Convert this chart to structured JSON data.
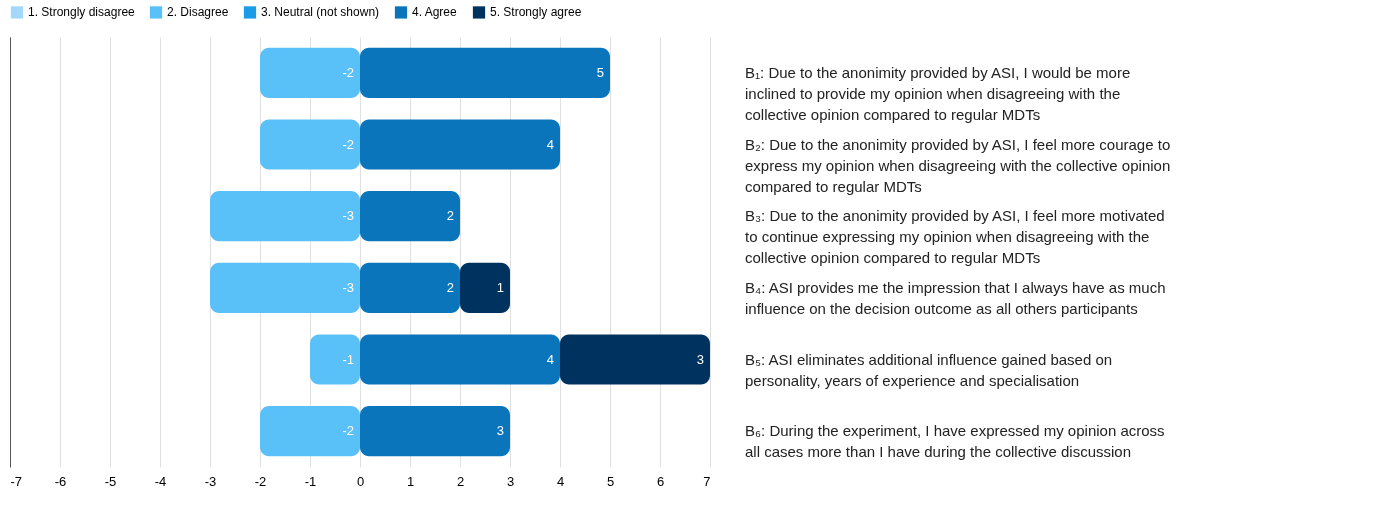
{
  "chart_data": {
    "type": "bar",
    "orientation": "horizontal",
    "stacked": true,
    "categories": [
      "B₁: Due to the anonimity provided by ASI, I would be more inclined to provide my opinion when disagreeing with the collective opinion compared to regular MDTs",
      "B₂: Due to the anonimity provided by ASI, I feel more courage to express my opinion when disagreeing with the collective opinion compared to regular MDTs",
      "B₃: Due to the anonimity provided by ASI, I feel more motivated to continue expressing my opinion when disagreeing with the collective opinion compared to regular MDTs",
      "B₄: ASI provides me the impression that I always have as much influence on the decision outcome as all others participants",
      "B₅: ASI eliminates additional influence gained based on personality, years of experience and specialisation",
      "B₆: During the experiment, I have expressed my opinion across all cases more than I have during the collective discussion"
    ],
    "series": [
      {
        "name": "1. Strongly disagree",
        "color": "#a4d8fb",
        "values": [
          null,
          null,
          null,
          null,
          null,
          null
        ]
      },
      {
        "name": "2. Disagree",
        "color": "#5ac1f8",
        "values": [
          -2,
          -2,
          -3,
          -3,
          -1,
          -2
        ]
      },
      {
        "name": "3. Neutral (not shown)",
        "color": "#1b9ce6",
        "values": [
          null,
          null,
          null,
          null,
          null,
          null
        ]
      },
      {
        "name": "4. Agree",
        "color": "#0a75bb",
        "values": [
          5,
          4,
          2,
          2,
          4,
          3
        ]
      },
      {
        "name": "5. Strongly agree",
        "color": "#00325f",
        "values": [
          null,
          null,
          null,
          1,
          3,
          null
        ]
      }
    ],
    "xlim": [
      -7,
      7
    ],
    "xticks": [
      -7,
      -6,
      -5,
      -4,
      -3,
      -2,
      -1,
      0,
      1,
      2,
      3,
      4,
      5,
      6,
      7
    ],
    "grid": "x",
    "legend": "top left",
    "data_labels": true
  }
}
